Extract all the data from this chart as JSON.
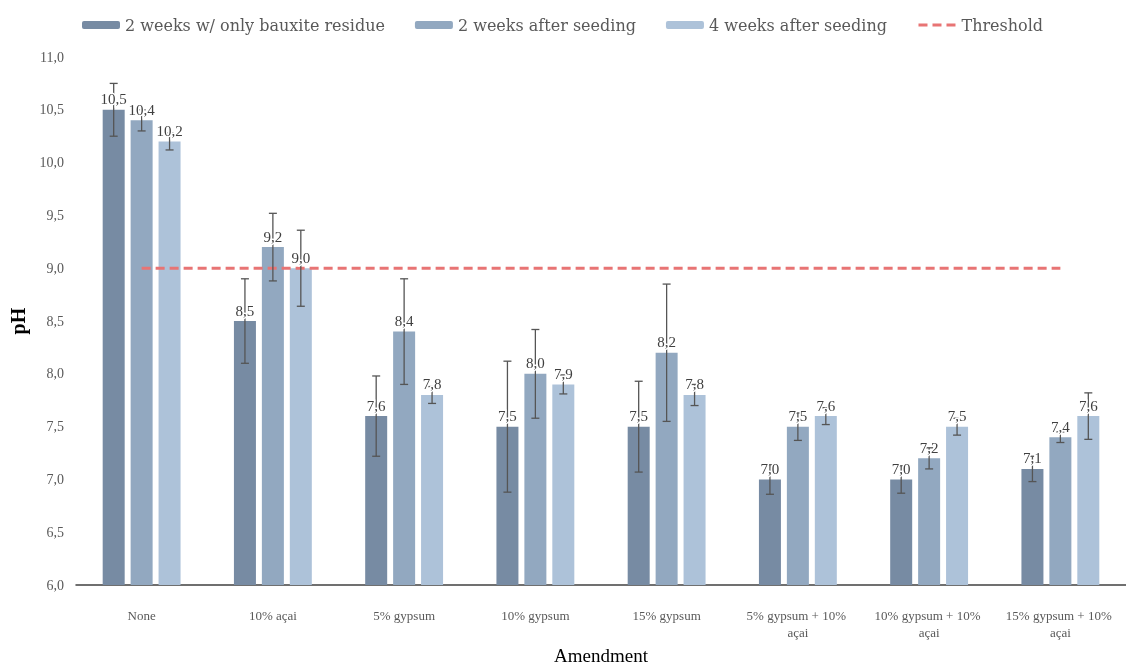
{
  "chart_data": {
    "type": "bar",
    "xlabel": "Amendment",
    "ylabel": "pH",
    "categories": [
      "None",
      "10% açai",
      "5% gypsum",
      "10% gypsum",
      "15% gypsum",
      "5% gypsum + 10% açai",
      "10% gypsum + 10% açai",
      "15% gypsum + 10% açai"
    ],
    "series": [
      {
        "name": "2 weeks w/ only bauxite residue",
        "color": "#778ba3",
        "values": [
          10.5,
          8.5,
          7.6,
          7.5,
          7.5,
          7.0,
          7.0,
          7.1
        ],
        "value_labels": [
          "10,5",
          "8,5",
          "7,6",
          "7,5",
          "7,5",
          "7,0",
          "7,0",
          "7,1"
        ],
        "errors": [
          0.25,
          0.4,
          0.38,
          0.62,
          0.43,
          0.14,
          0.13,
          0.12
        ]
      },
      {
        "name": "2 weeks after seeding",
        "color": "#92a8c0",
        "values": [
          10.4,
          9.2,
          8.4,
          8.0,
          8.2,
          7.5,
          7.2,
          7.4
        ],
        "value_labels": [
          "10,4",
          "9,2",
          "8,4",
          "8,0",
          "8,2",
          "7,5",
          "7,2",
          "7,4"
        ],
        "errors": [
          0.1,
          0.32,
          0.5,
          0.42,
          0.65,
          0.13,
          0.1,
          0.05
        ]
      },
      {
        "name": "4 weeks after seeding",
        "color": "#adc2d9",
        "values": [
          10.2,
          9.0,
          7.8,
          7.9,
          7.8,
          7.6,
          7.5,
          7.6
        ],
        "value_labels": [
          "10,2",
          "9,0",
          "7,8",
          "7,9",
          "7,8",
          "7,6",
          "7,5",
          "7,6"
        ],
        "errors": [
          0.08,
          0.36,
          0.08,
          0.09,
          0.1,
          0.08,
          0.08,
          0.22
        ]
      },
      {
        "name": "Threshold",
        "type": "line",
        "color": "#e87474",
        "values": [
          9,
          9,
          9,
          9,
          9,
          9,
          9,
          9
        ]
      }
    ],
    "ylim": [
      6,
      11
    ],
    "yticks": [
      {
        "value": 6,
        "label": "6,0"
      },
      {
        "value": 6.5,
        "label": "6,5"
      },
      {
        "value": 7,
        "label": "7,0"
      },
      {
        "value": 7.5,
        "label": "7,5"
      },
      {
        "value": 8,
        "label": "8,0"
      },
      {
        "value": 8.5,
        "label": "8,5"
      },
      {
        "value": 9,
        "label": "9,0"
      },
      {
        "value": 9.5,
        "label": "9,5"
      },
      {
        "value": 10,
        "label": "10,0"
      },
      {
        "value": 10.5,
        "label": "10,5"
      },
      {
        "value": 11,
        "label": "11,0"
      }
    ],
    "grid": false,
    "legend": "top",
    "line_style": "dashed",
    "marker": "none"
  }
}
